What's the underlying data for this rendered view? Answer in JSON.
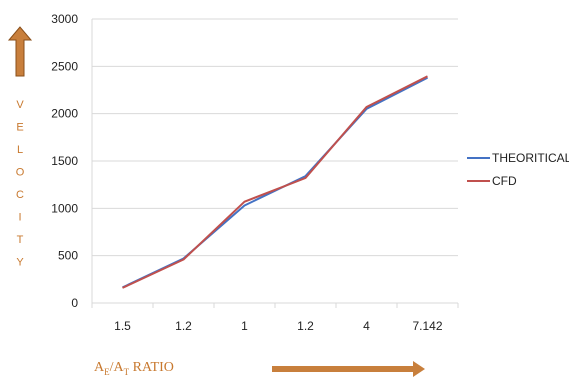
{
  "chart_data": {
    "type": "line",
    "categories": [
      "1.5",
      "1.2",
      "1",
      "1.2",
      "4",
      "7.142"
    ],
    "series": [
      {
        "name": "THEORITICAL",
        "color": "#4472c4",
        "values": [
          165,
          470,
          1030,
          1340,
          2050,
          2380
        ]
      },
      {
        "name": "CFD",
        "color": "#c0504d",
        "values": [
          160,
          460,
          1070,
          1320,
          2070,
          2395
        ]
      }
    ],
    "ylim": [
      0,
      3000
    ],
    "yticks": [
      0,
      500,
      1000,
      1500,
      2000,
      2500,
      3000
    ],
    "ylabel_letters": [
      "V",
      "E",
      "L",
      "O",
      "C",
      "I",
      "T",
      "Y"
    ],
    "xlabel": {
      "a1": "A",
      "sub1": "E",
      "slash": "/",
      "a2": "A",
      "sub2": "T",
      "tail": " RATIO"
    },
    "grid": true,
    "legend": "right"
  },
  "colors": {
    "arrow": "#c87f3c",
    "label": "#c8792f",
    "grid": "#d9d9d9"
  }
}
